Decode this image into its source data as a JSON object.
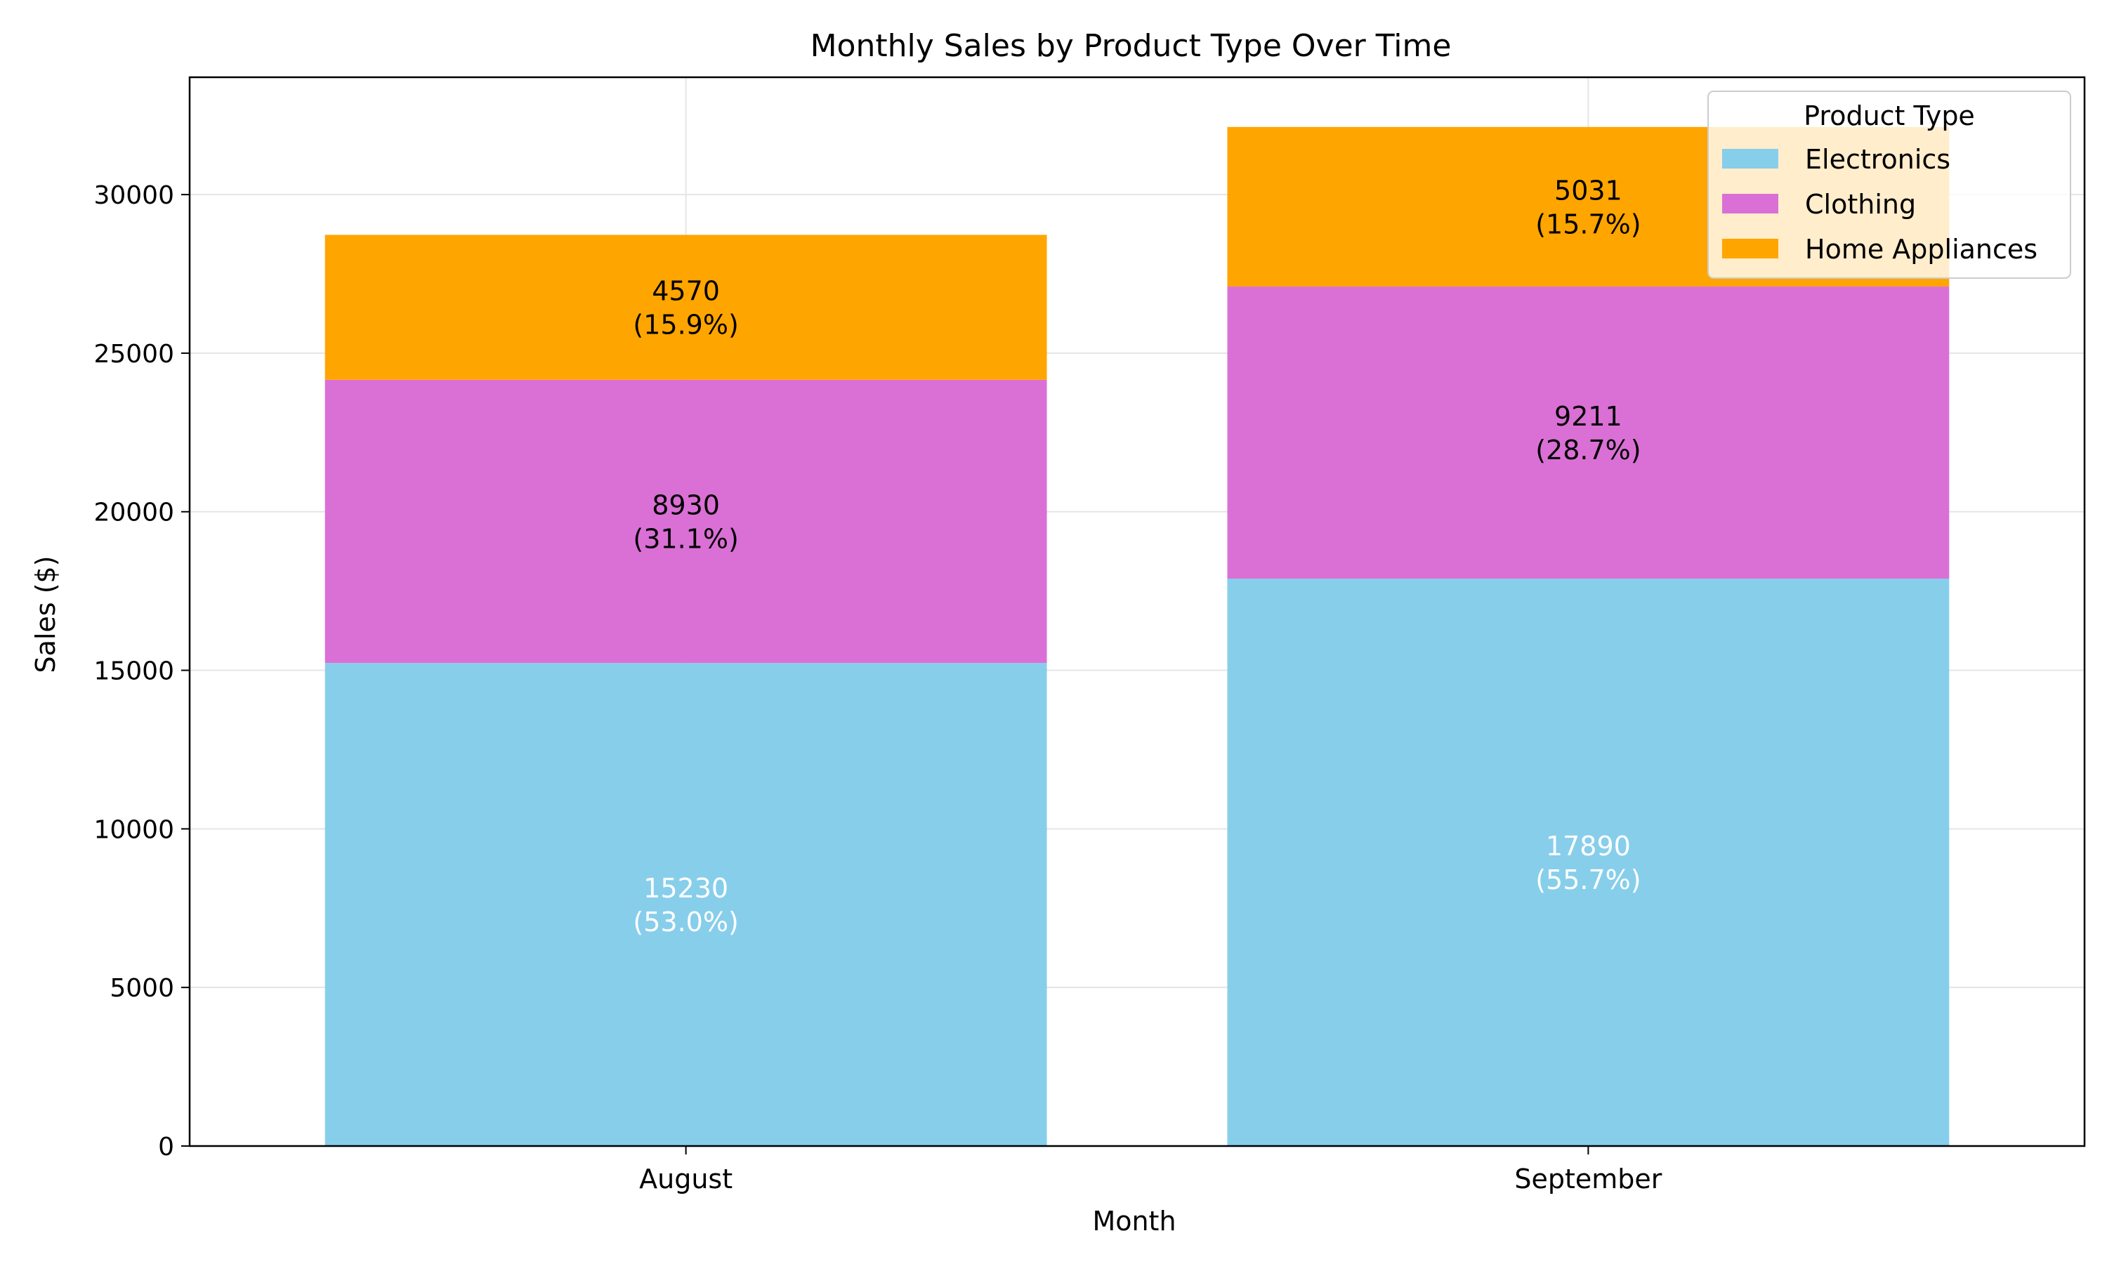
{
  "chart_data": {
    "type": "bar",
    "stacked": true,
    "title": "Monthly Sales by Product Type Over Time",
    "xlabel": "Month",
    "ylabel": "Sales ($)",
    "categories": [
      "August",
      "September"
    ],
    "series": [
      {
        "name": "Electronics",
        "values": [
          15230,
          17890
        ],
        "color": "#87ceeb",
        "label_color": "#ffffff",
        "labels": [
          "15230\n(53.0%)",
          "17890\n(55.7%)"
        ]
      },
      {
        "name": "Clothing",
        "values": [
          8930,
          9211
        ],
        "color": "#da70d6",
        "label_color": "#000000",
        "labels": [
          "8930\n(31.1%)",
          "9211\n(28.7%)"
        ]
      },
      {
        "name": "Home Appliances",
        "values": [
          4570,
          5031
        ],
        "color": "#ffa500",
        "label_color": "#000000",
        "labels": [
          "4570\n(15.9%)",
          "5031\n(15.7%)"
        ]
      }
    ],
    "ylim": [
      0,
      33700
    ],
    "yticks": [
      0,
      5000,
      10000,
      15000,
      20000,
      25000,
      30000
    ],
    "ytick_labels": [
      "0",
      "5000",
      "10000",
      "15000",
      "20000",
      "25000",
      "30000"
    ],
    "grid": true,
    "legend": {
      "title": "Product Type",
      "position": "top-right"
    }
  }
}
